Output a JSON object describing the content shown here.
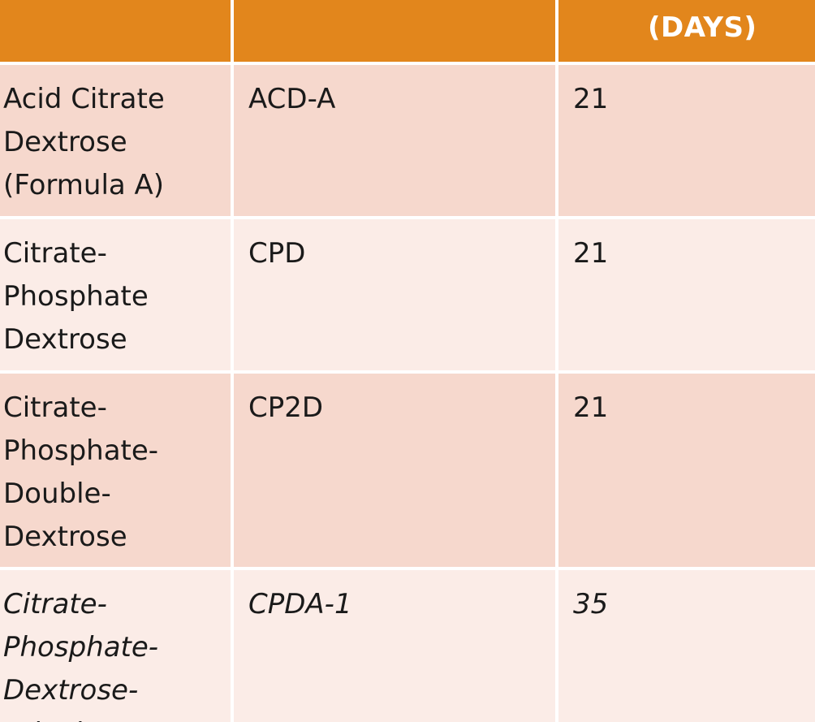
{
  "header": {
    "col1": "",
    "col2": "",
    "col3": "(DAYS)"
  },
  "rows": [
    {
      "name": "Acid Citrate\nDextrose\n(Formula A)",
      "abbrev": "ACD-A",
      "days": "21",
      "italic": false
    },
    {
      "name": "Citrate-\nPhosphate\nDextrose",
      "abbrev": "CPD",
      "days": "21",
      "italic": false
    },
    {
      "name": "Citrate-\nPhosphate-\nDouble-\nDextrose",
      "abbrev": "CP2D",
      "days": "21",
      "italic": false
    },
    {
      "name": "Citrate-\nPhosphate-\nDextrose-\nAdenine*",
      "abbrev": "CPDA-1",
      "days": "35",
      "italic": true
    }
  ],
  "colors": {
    "header_bg": "#e2861c",
    "row_dark": "#f6d8cd",
    "row_light": "#fbece7",
    "border": "#ffffff"
  }
}
